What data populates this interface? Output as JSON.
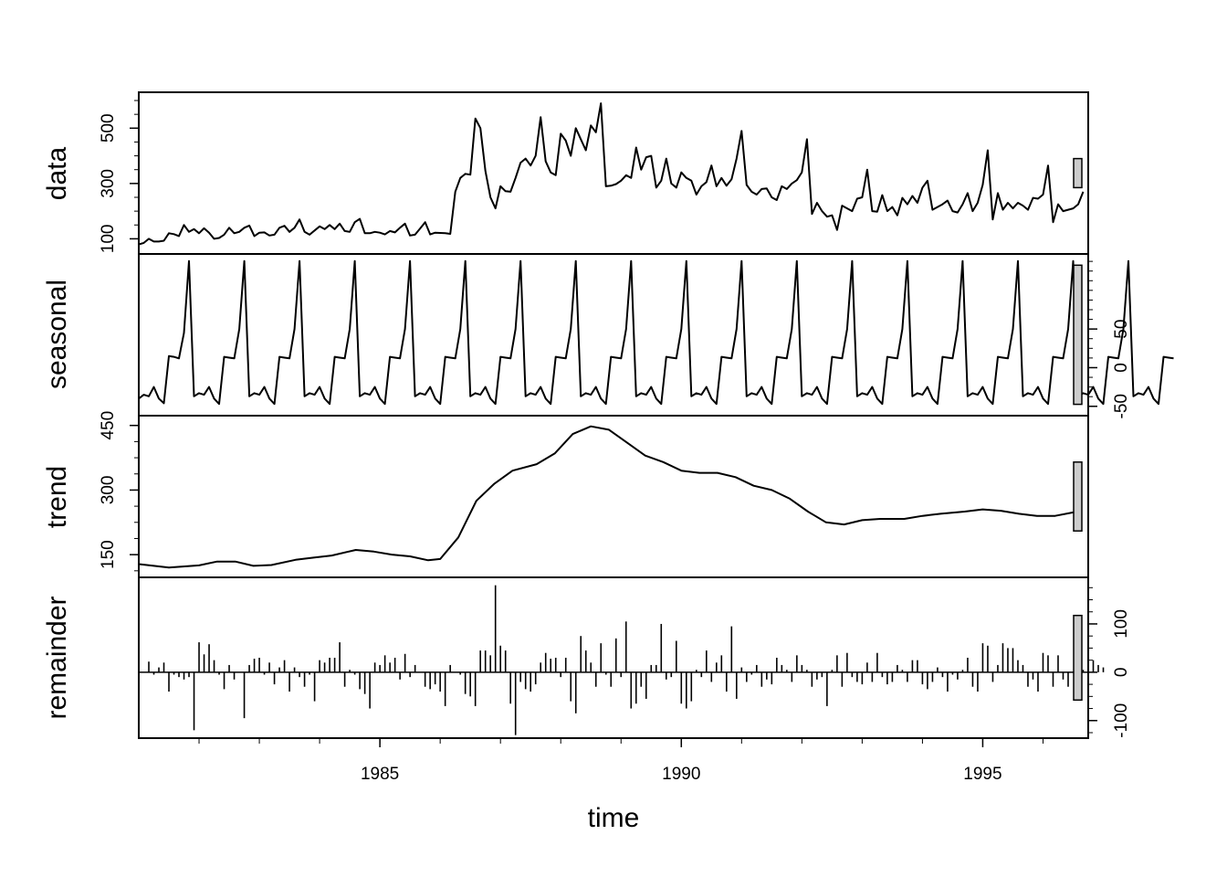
{
  "chart_data": {
    "type": "line",
    "subtype": "stl-decomposition",
    "xlabel": "time",
    "xlim": [
      1981.0,
      1996.75
    ],
    "x_ticks": [
      1985,
      1990,
      1995
    ],
    "x_start": 1981.0,
    "frequency": 12,
    "panels": [
      {
        "id": "data",
        "label": "data",
        "kind": "line",
        "ylim": [
          65,
          610
        ],
        "y_ticks": [
          100,
          300,
          500
        ],
        "y_axis_side": "left",
        "values": [
          80,
          85,
          100,
          90,
          90,
          93,
          120,
          117,
          110,
          150,
          125,
          135,
          120,
          138,
          122,
          100,
          103,
          115,
          140,
          120,
          125,
          140,
          148,
          110,
          122,
          123,
          112,
          115,
          140,
          147,
          125,
          140,
          170,
          125,
          115,
          130,
          145,
          135,
          150,
          135,
          155,
          128,
          125,
          160,
          172,
          120,
          120,
          125,
          122,
          116,
          128,
          123,
          140,
          155,
          112,
          115,
          137,
          160,
          116,
          122,
          121,
          120,
          118,
          270,
          320,
          335,
          332,
          535,
          500,
          345,
          250,
          210,
          290,
          272,
          270,
          320,
          375,
          390,
          365,
          400,
          540,
          380,
          340,
          330,
          480,
          455,
          400,
          500,
          460,
          420,
          510,
          485,
          590,
          290,
          292,
          298,
          310,
          330,
          320,
          430,
          350,
          395,
          400,
          285,
          310,
          390,
          300,
          285,
          340,
          320,
          310,
          260,
          290,
          305,
          365,
          290,
          320,
          292,
          315,
          390,
          490,
          295,
          270,
          260,
          280,
          282,
          250,
          240,
          290,
          280,
          300,
          312,
          340,
          460,
          190,
          230,
          200,
          180,
          185,
          132,
          220,
          210,
          200,
          245,
          250,
          350,
          200,
          198,
          258,
          200,
          215,
          185,
          248,
          225,
          255,
          230,
          285,
          310,
          205,
          215,
          225,
          238,
          200,
          195,
          225,
          265,
          200,
          230,
          295,
          420,
          170,
          265,
          205,
          230,
          210,
          230,
          220,
          205,
          248,
          245,
          260,
          365,
          160,
          225,
          200,
          205,
          210,
          225,
          270
        ]
      },
      {
        "id": "seasonal",
        "label": "seasonal",
        "kind": "line",
        "ylim": [
          -55,
          140
        ],
        "y_ticks": [
          -50,
          0,
          50
        ],
        "y_axis_side": "right",
        "values": [
          -40,
          -35,
          -37,
          -25,
          -40,
          -46,
          15,
          14,
          12,
          45,
          138,
          -37,
          -33,
          -35,
          -25,
          -40,
          -47,
          14,
          13,
          12,
          50,
          138,
          -37,
          -33,
          -35,
          -25,
          -40,
          -47,
          14,
          13,
          12,
          50,
          138,
          -37,
          -33,
          -35,
          -25,
          -40,
          -47,
          14,
          13,
          12,
          50,
          138,
          -37,
          -33,
          -35,
          -25,
          -40,
          -47,
          14,
          13,
          12,
          50,
          138,
          -37,
          -33,
          -35,
          -25,
          -40,
          -47,
          14,
          13,
          12,
          50,
          138,
          -37,
          -33,
          -35,
          -25,
          -40,
          -47,
          14,
          13,
          12,
          50,
          138,
          -37,
          -33,
          -35,
          -25,
          -40,
          -47,
          14,
          13,
          12,
          50,
          138,
          -37,
          -33,
          -35,
          -25,
          -40,
          -47,
          14,
          13,
          12,
          50,
          138,
          -37,
          -33,
          -35,
          -25,
          -40,
          -47,
          14,
          13,
          12,
          50,
          138,
          -37,
          -33,
          -35,
          -25,
          -40,
          -47,
          14,
          13,
          12,
          50,
          138,
          -37,
          -33,
          -35,
          -25,
          -40,
          -47,
          14,
          13,
          12,
          50,
          138,
          -37,
          -33,
          -35,
          -25,
          -40,
          -47,
          14,
          13,
          12,
          50,
          138,
          -37,
          -33,
          -35,
          -25,
          -40,
          -47,
          14,
          13,
          12,
          50,
          138,
          -37,
          -33,
          -35,
          -25,
          -40,
          -47,
          14,
          13,
          12,
          50,
          138,
          -37,
          -33,
          -35,
          -25,
          -40,
          -47,
          14,
          13,
          12,
          50,
          138,
          -37,
          -33,
          -35,
          -25,
          -40,
          -47,
          14,
          13,
          12,
          50,
          138,
          -37,
          -33,
          -35,
          -25,
          -40,
          -47,
          14,
          13,
          12,
          50,
          138,
          -37,
          -33,
          -35,
          -25,
          -40,
          -47,
          14,
          13,
          12
        ]
      },
      {
        "id": "trend",
        "label": "trend",
        "kind": "line",
        "ylim": [
          110,
          460
        ],
        "y_ticks": [
          150,
          300,
          450
        ],
        "y_axis_side": "left",
        "x": [
          1981.0,
          1981.5,
          1982.0,
          1982.3,
          1982.6,
          1982.9,
          1983.2,
          1983.6,
          1983.9,
          1984.2,
          1984.6,
          1984.9,
          1985.2,
          1985.5,
          1985.8,
          1986.0,
          1986.3,
          1986.6,
          1986.9,
          1987.2,
          1987.6,
          1987.9,
          1988.2,
          1988.5,
          1988.8,
          1989.1,
          1989.4,
          1989.7,
          1990.0,
          1990.3,
          1990.6,
          1990.9,
          1991.2,
          1991.5,
          1991.8,
          1992.1,
          1992.4,
          1992.7,
          1993.0,
          1993.3,
          1993.7,
          1994.0,
          1994.3,
          1994.7,
          1995.0,
          1995.3,
          1995.6,
          1995.9,
          1996.2,
          1996.5
        ],
        "values": [
          128,
          120,
          125,
          134,
          134,
          124,
          126,
          138,
          143,
          148,
          161,
          157,
          150,
          146,
          137,
          140,
          190,
          275,
          315,
          345,
          360,
          385,
          430,
          448,
          440,
          410,
          380,
          365,
          345,
          340,
          340,
          330,
          310,
          300,
          280,
          250,
          225,
          220,
          230,
          233,
          233,
          240,
          245,
          250,
          255,
          252,
          245,
          240,
          240,
          248
        ]
      },
      {
        "id": "remainder",
        "label": "remainder",
        "kind": "spikes",
        "ylim": [
          -125,
          185
        ],
        "y_ticks": [
          -100,
          0,
          100
        ],
        "y_axis_side": "right",
        "values": [
          0,
          0,
          22,
          -5,
          10,
          20,
          -40,
          -5,
          -10,
          -15,
          -10,
          -120,
          62,
          37,
          58,
          25,
          -5,
          -35,
          15,
          -15,
          0,
          -95,
          15,
          28,
          30,
          -5,
          20,
          -25,
          10,
          25,
          -40,
          10,
          -10,
          -30,
          -5,
          -60,
          25,
          20,
          30,
          30,
          62,
          -30,
          5,
          -5,
          -35,
          -45,
          -75,
          20,
          15,
          35,
          20,
          30,
          -15,
          38,
          -10,
          15,
          0,
          -30,
          -35,
          -25,
          -40,
          -70,
          15,
          0,
          -5,
          -45,
          -50,
          -70,
          45,
          45,
          35,
          180,
          55,
          45,
          -65,
          -130,
          -20,
          -35,
          -40,
          -25,
          20,
          40,
          28,
          30,
          -10,
          30,
          -60,
          -85,
          75,
          45,
          20,
          -30,
          60,
          -5,
          -30,
          70,
          -10,
          105,
          -75,
          -65,
          -30,
          -55,
          15,
          15,
          100,
          -15,
          -10,
          65,
          -65,
          -75,
          -60,
          5,
          -10,
          45,
          -20,
          20,
          35,
          -40,
          95,
          -55,
          10,
          -20,
          -5,
          15,
          -30,
          -15,
          -25,
          30,
          15,
          5,
          -20,
          35,
          15,
          5,
          -30,
          -15,
          -10,
          -70,
          5,
          35,
          -30,
          40,
          -10,
          -20,
          -25,
          20,
          -20,
          40,
          -10,
          -25,
          -20,
          15,
          5,
          -20,
          25,
          25,
          -25,
          -35,
          -20,
          10,
          -10,
          -40,
          -5,
          -15,
          5,
          30,
          -30,
          -40,
          60,
          55,
          -20,
          15,
          60,
          50,
          50,
          25,
          15,
          -30,
          -15,
          -40,
          40,
          35,
          -30,
          35,
          -15,
          -30,
          0,
          25,
          5,
          -40,
          25,
          15,
          10
        ]
      }
    ],
    "scale_bars": "right-side grey bars of equal data height in each panel"
  }
}
